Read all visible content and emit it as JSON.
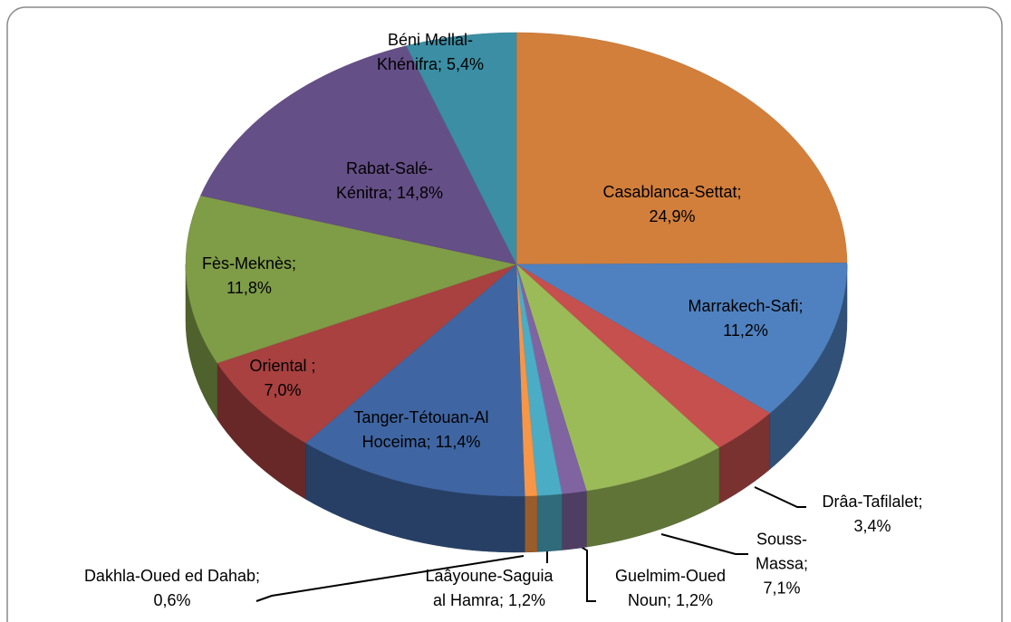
{
  "chart_data": {
    "type": "pie3d",
    "categories": [
      "Casablanca-Settat;",
      "Marrakech-Safi;",
      "Drâa-Tafilalet;",
      "Souss-Massa;",
      "Guelmim-Oued Noun;",
      "Laâyoune-Saguia al Hamra;",
      "Dakhla-Oued ed Dahab;",
      "Tanger-Tétouan-Al Hoceima;",
      "Oriental ;",
      "Fès-Meknès;",
      "Rabat-Salé-Kénitra;",
      "Béni Mellal-Khénifra;"
    ],
    "values": [
      24.9,
      11.2,
      3.4,
      7.1,
      1.2,
      1.2,
      0.6,
      11.4,
      7.0,
      11.8,
      14.8,
      5.4
    ],
    "value_labels": [
      "24,9%",
      "11,2%",
      "3,4%",
      "7,1%",
      "1,2%",
      "1,2%",
      "0,6%",
      "11,4%",
      "7,0%",
      "11,8%",
      "14,8%",
      "5,4%"
    ],
    "colors": [
      "#d27f3b",
      "#4f81c0",
      "#c5504e",
      "#9bbb59",
      "#8064a2",
      "#4bacc6",
      "#f79646",
      "#3f66a3",
      "#a84140",
      "#7f9c47",
      "#654f87",
      "#3b8ea3"
    ]
  }
}
